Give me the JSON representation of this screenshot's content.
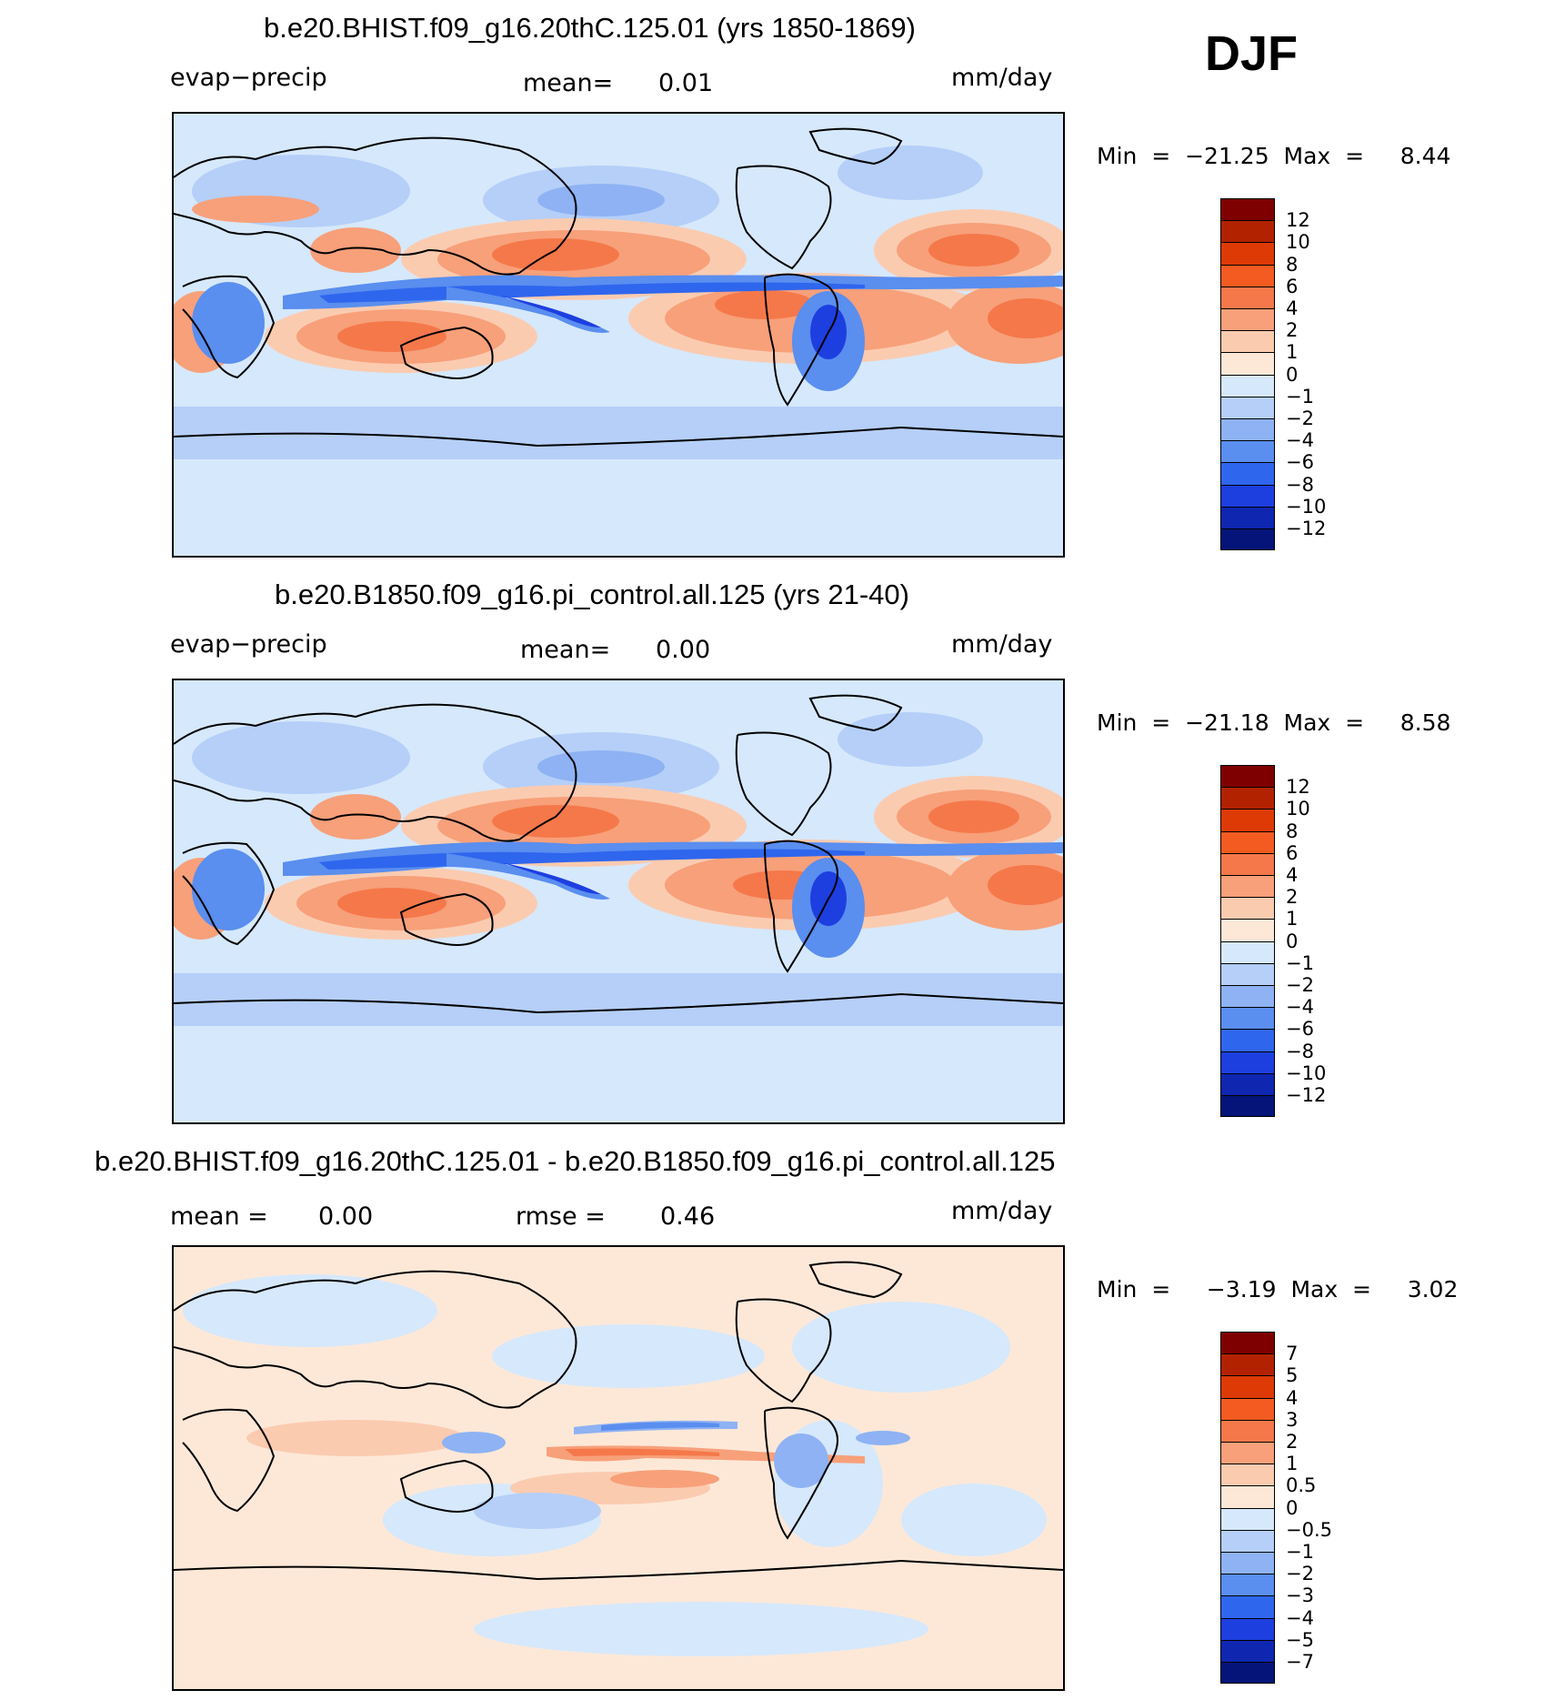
{
  "season": "DJF",
  "units": "mm/day",
  "panels": [
    {
      "title": "b.e20.BHIST.f09_g16.20thC.125.01 (yrs 1850-1869)",
      "left_label": "evap−precip",
      "mean_label": "mean=",
      "mean_value": "0.01",
      "units": "mm/day",
      "min_max": "Min  =  −21.25  Max  =     8.44",
      "colorbar": {
        "labels": [
          "12",
          "10",
          "8",
          "6",
          "4",
          "2",
          "1",
          "0",
          "−1",
          "−2",
          "−4",
          "−6",
          "−8",
          "−10",
          "−12"
        ],
        "colors": [
          "#7f0000",
          "#b22200",
          "#de3a05",
          "#f35b20",
          "#f5784a",
          "#f7a07a",
          "#fbcbb0",
          "#fde8d8",
          "#d6e8fb",
          "#b5cff8",
          "#8eb2f3",
          "#5a8eef",
          "#2f66ee",
          "#1d3fe0",
          "#0f26b0",
          "#051478"
        ]
      }
    },
    {
      "title": "b.e20.B1850.f09_g16.pi_control.all.125 (yrs 21-40)",
      "left_label": "evap−precip",
      "mean_label": "mean=",
      "mean_value": "0.00",
      "units": "mm/day",
      "min_max": "Min  =  −21.18  Max  =     8.58",
      "colorbar": {
        "labels": [
          "12",
          "10",
          "8",
          "6",
          "4",
          "2",
          "1",
          "0",
          "−1",
          "−2",
          "−4",
          "−6",
          "−8",
          "−10",
          "−12"
        ],
        "colors": [
          "#7f0000",
          "#b22200",
          "#de3a05",
          "#f35b20",
          "#f5784a",
          "#f7a07a",
          "#fbcbb0",
          "#fde8d8",
          "#d6e8fb",
          "#b5cff8",
          "#8eb2f3",
          "#5a8eef",
          "#2f66ee",
          "#1d3fe0",
          "#0f26b0",
          "#051478"
        ]
      }
    },
    {
      "title": "b.e20.BHIST.f09_g16.20thC.125.01 - b.e20.B1850.f09_g16.pi_control.all.125",
      "mean_label": "mean  =",
      "mean_value": "0.00",
      "rmse_label": "rmse  =",
      "rmse_value": "0.46",
      "units": "mm/day",
      "min_max": "Min  =     −3.19  Max  =     3.02",
      "colorbar": {
        "labels": [
          "7",
          "5",
          "4",
          "3",
          "2",
          "1",
          "0.5",
          "0",
          "−0.5",
          "−1",
          "−2",
          "−3",
          "−4",
          "−5",
          "−7"
        ],
        "colors": [
          "#7f0000",
          "#b22200",
          "#de3a05",
          "#f35b20",
          "#f5784a",
          "#f7a07a",
          "#fbcbb0",
          "#fde8d8",
          "#d6e8fb",
          "#b5cff8",
          "#8eb2f3",
          "#5a8eef",
          "#2f66ee",
          "#1d3fe0",
          "#0f26b0",
          "#051478"
        ]
      }
    }
  ]
}
